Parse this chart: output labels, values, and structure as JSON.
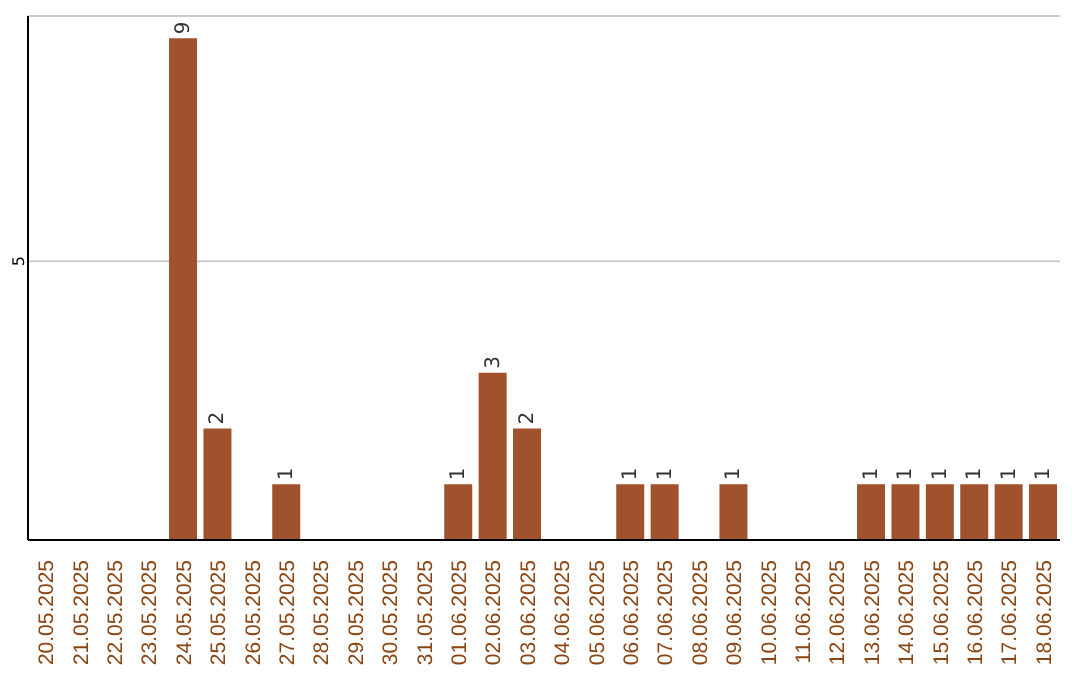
{
  "chart_data": {
    "type": "bar",
    "categories": [
      "20.05.2025",
      "21.05.2025",
      "22.05.2025",
      "23.05.2025",
      "24.05.2025",
      "25.05.2025",
      "26.05.2025",
      "27.05.2025",
      "28.05.2025",
      "29.05.2025",
      "30.05.2025",
      "31.05.2025",
      "01.06.2025",
      "02.06.2025",
      "03.06.2025",
      "04.06.2025",
      "05.06.2025",
      "06.06.2025",
      "07.06.2025",
      "08.06.2025",
      "09.06.2025",
      "10.06.2025",
      "11.06.2025",
      "12.06.2025",
      "13.06.2025",
      "14.06.2025",
      "15.06.2025",
      "16.06.2025",
      "17.06.2025",
      "18.06.2025"
    ],
    "values": [
      0,
      0,
      0,
      0,
      9,
      2,
      0,
      1,
      0,
      0,
      0,
      0,
      1,
      3,
      2,
      0,
      0,
      1,
      1,
      0,
      1,
      0,
      0,
      0,
      1,
      1,
      1,
      1,
      1,
      1
    ],
    "value_labels": [
      null,
      null,
      null,
      null,
      "9",
      "2",
      null,
      "1",
      null,
      null,
      null,
      null,
      "1",
      "3",
      "2",
      null,
      null,
      "1",
      "1",
      null,
      "1",
      null,
      null,
      null,
      "1",
      "1",
      "1",
      "1",
      "1",
      "1"
    ],
    "color": "#a0522d",
    "ylim": [
      0,
      9.4
    ],
    "yticks": [
      5
    ],
    "grid": "y"
  }
}
